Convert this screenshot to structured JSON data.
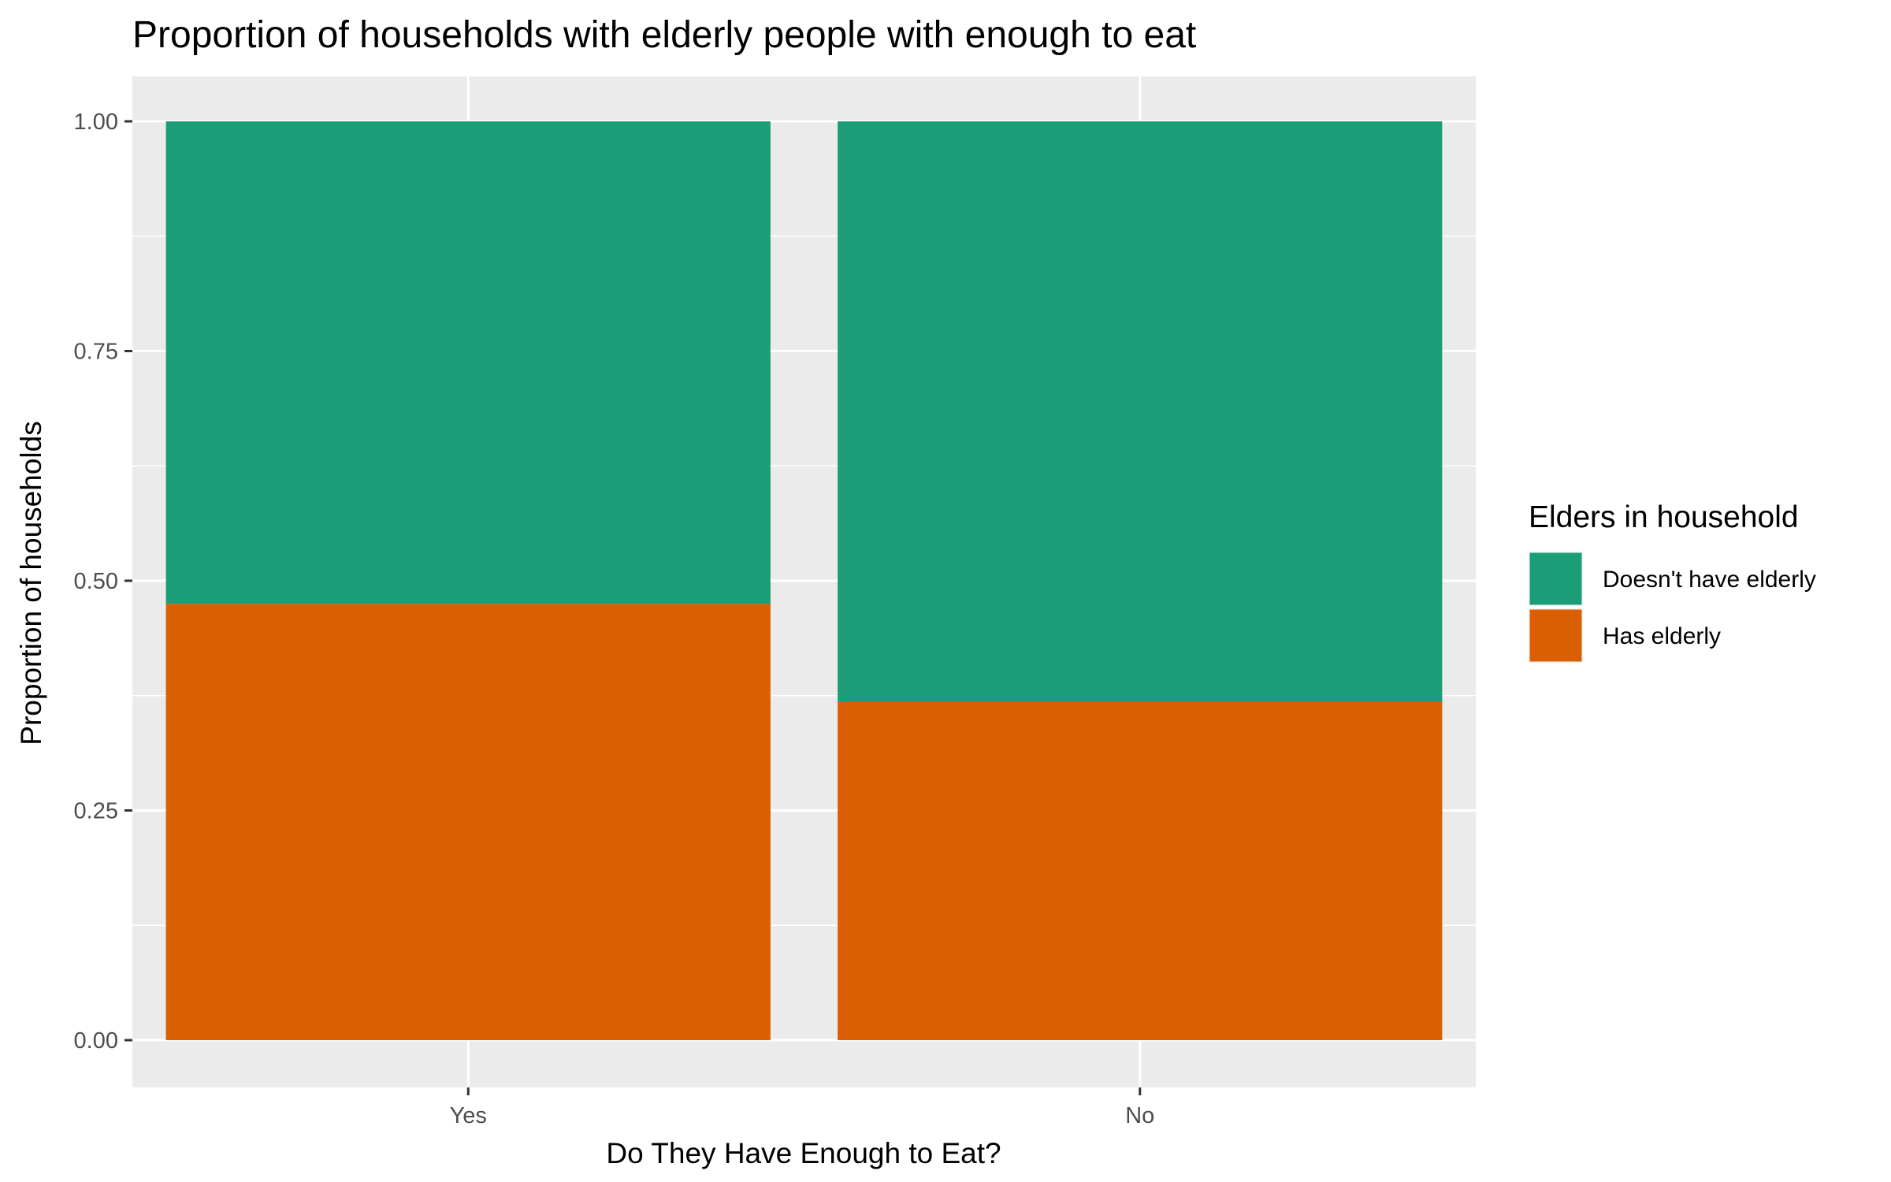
{
  "chart_data": {
    "type": "bar",
    "stacked": true,
    "title": "Proportion of households with elderly people with enough to eat",
    "xlabel": "Do They Have Enough to Eat?",
    "ylabel": "Proportion of households",
    "categories": [
      "Yes",
      "No"
    ],
    "ylim": [
      0,
      1
    ],
    "yticks": [
      {
        "value": 0,
        "label": "0.00"
      },
      {
        "value": 0.25,
        "label": "0.25"
      },
      {
        "value": 0.5,
        "label": "0.50"
      },
      {
        "value": 0.75,
        "label": "0.75"
      },
      {
        "value": 1,
        "label": "1.00"
      }
    ],
    "grid": true,
    "legend": {
      "title": "Elders in household",
      "position": "right"
    },
    "series": [
      {
        "name": "Has elderly",
        "color": "#D95F02",
        "values": [
          0.475,
          0.368
        ]
      },
      {
        "name": "Doesn't have elderly",
        "color": "#1B9E77",
        "values": [
          0.525,
          0.632
        ]
      }
    ],
    "legend_order": [
      "Doesn't have elderly",
      "Has elderly"
    ],
    "panel_background": "#EBEBEB",
    "grid_color": "#FFFFFF"
  }
}
